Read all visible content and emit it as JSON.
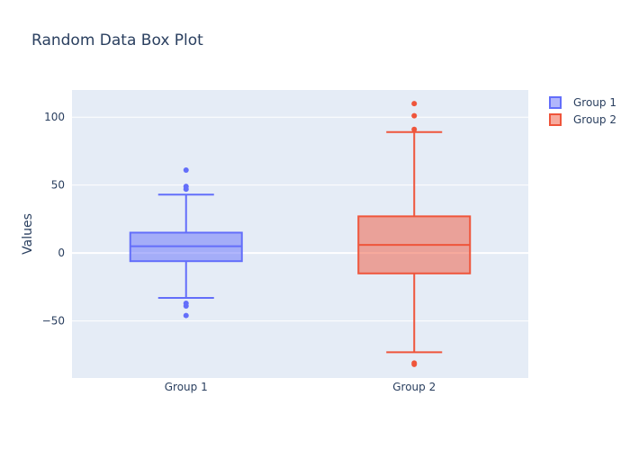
{
  "chart_data": {
    "type": "box",
    "title": "Random Data Box Plot",
    "xlabel": "",
    "ylabel": "Values",
    "ylim": [
      -92,
      120
    ],
    "yticks": [
      100,
      50,
      0,
      -50
    ],
    "ytick_labels": [
      "100",
      "50",
      "0",
      "−50"
    ],
    "grid": true,
    "legend_position": "top-right",
    "categories": [
      "Group 1",
      "Group 2"
    ],
    "series": [
      {
        "name": "Group 1",
        "color": "#636efa",
        "fill": "rgba(99,110,250,0.5)",
        "min": -33,
        "q1": -6,
        "median": 5,
        "q3": 15,
        "max": 43,
        "outliers": [
          61,
          49,
          47,
          -37,
          -39,
          -46
        ]
      },
      {
        "name": "Group 2",
        "color": "#ef553b",
        "fill": "rgba(239,85,59,0.5)",
        "min": -73,
        "q1": -15,
        "median": 6,
        "q3": 27,
        "max": 89,
        "outliers": [
          110,
          101,
          91,
          -81,
          -82
        ]
      }
    ]
  }
}
